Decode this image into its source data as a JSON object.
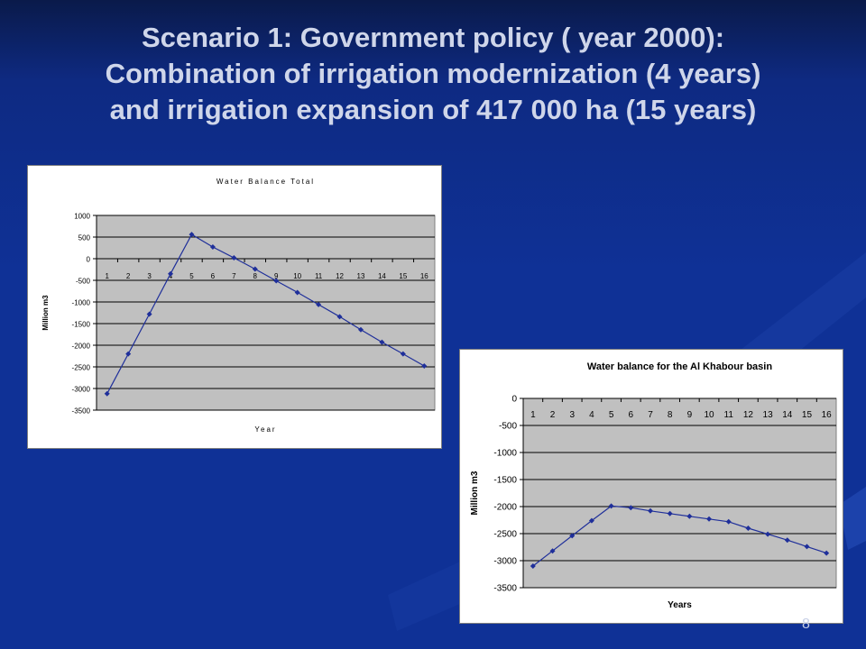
{
  "slide": {
    "title_lines": [
      "Scenario 1: Government policy ( year 2000):",
      "Combination of irrigation modernization (4 years)",
      "and irrigation expansion of 417 000 ha (15 years)"
    ],
    "page_number": "8",
    "colors": {
      "background": "#0f3196",
      "title_text": "#cfd6ea",
      "plot_area": "#c0c0c0",
      "series": "#1f2f9a"
    }
  },
  "chart_data": [
    {
      "type": "line",
      "title": "Water Balance Total",
      "xlabel": "Year",
      "ylabel": "Million m3",
      "x": [
        1,
        2,
        3,
        4,
        5,
        6,
        7,
        8,
        9,
        10,
        11,
        12,
        13,
        14,
        15,
        16
      ],
      "x_tick_labels": [
        "1",
        "2",
        "3",
        "4",
        "5",
        "6",
        "7",
        "8",
        "9",
        "10",
        "11",
        "12",
        "13",
        "14",
        "15",
        "16"
      ],
      "y_tick_labels": [
        "1000",
        "500",
        "0",
        "-500",
        "-1000",
        "-1500",
        "-2000",
        "-2500",
        "-3000",
        "-3500"
      ],
      "y_ticks": [
        1000,
        500,
        0,
        -500,
        -1000,
        -1500,
        -2000,
        -2500,
        -3000,
        -3500
      ],
      "ylim": [
        -3500,
        1000
      ],
      "series": [
        {
          "values": [
            -3120,
            -2200,
            -1280,
            -350,
            560,
            270,
            20,
            -240,
            -510,
            -780,
            -1060,
            -1340,
            -1640,
            -1930,
            -2200,
            -2480
          ]
        }
      ],
      "grid": true,
      "legend": "none"
    },
    {
      "type": "line",
      "title": "Water balance for the Al Khabour basin",
      "xlabel": "Years",
      "ylabel": "Million m3",
      "x": [
        1,
        2,
        3,
        4,
        5,
        6,
        7,
        8,
        9,
        10,
        11,
        12,
        13,
        14,
        15,
        16
      ],
      "x_tick_labels": [
        "1",
        "2",
        "3",
        "4",
        "5",
        "6",
        "7",
        "8",
        "9",
        "10",
        "11",
        "12",
        "13",
        "14",
        "15",
        "16"
      ],
      "y_tick_labels": [
        "0",
        "-500",
        "-1000",
        "-1500",
        "-2000",
        "-2500",
        "-3000",
        "-3500"
      ],
      "y_ticks": [
        0,
        -500,
        -1000,
        -1500,
        -2000,
        -2500,
        -3000,
        -3500
      ],
      "ylim": [
        -3500,
        0
      ],
      "series": [
        {
          "values": [
            -3100,
            -2820,
            -2540,
            -2260,
            -1990,
            -2020,
            -2080,
            -2130,
            -2180,
            -2230,
            -2280,
            -2400,
            -2510,
            -2620,
            -2740,
            -2860
          ]
        }
      ],
      "grid": true,
      "legend": "none"
    }
  ]
}
